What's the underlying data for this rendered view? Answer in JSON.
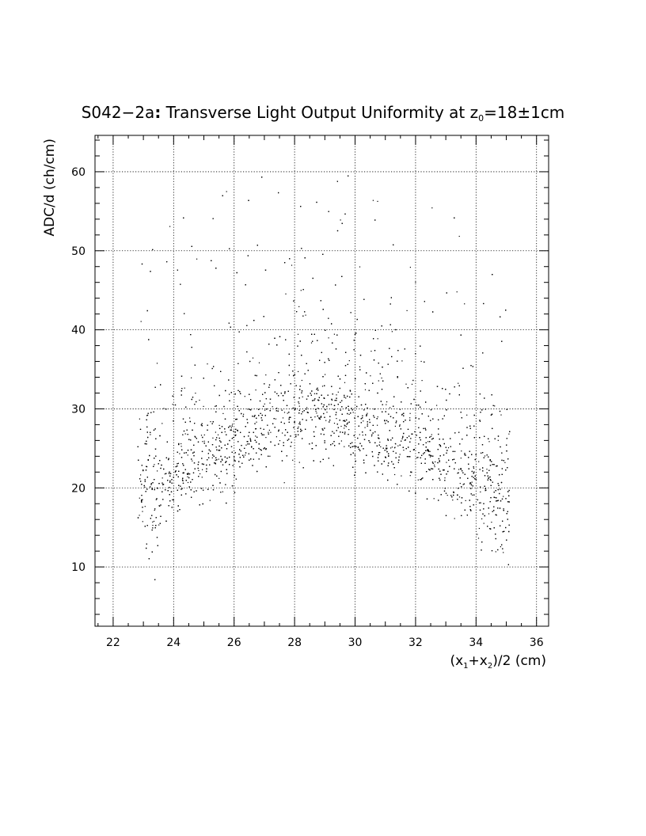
{
  "chart_data": {
    "type": "scatter",
    "title": {
      "main": "S042−2a",
      "colon": ":",
      "text": " Transverse Light Output Uniformity at z",
      "sub": "0",
      "tail": "=18±1cm"
    },
    "xlabel": {
      "p1": "(x",
      "s1": "1",
      "p2": "+x",
      "s2": "2",
      "p3": ")/2 (cm)"
    },
    "ylabel": "ADC/d (ch/cm)",
    "xlim": [
      21.4,
      36.4
    ],
    "ylim": [
      2.5,
      64.6
    ],
    "x_ticks": [
      22,
      24,
      26,
      28,
      30,
      32,
      34,
      36
    ],
    "x_tick_labels": [
      "22",
      "24",
      "26",
      "28",
      "30",
      "32",
      "34",
      "36"
    ],
    "y_ticks": [
      10,
      20,
      30,
      40,
      50,
      60
    ],
    "y_tick_labels": [
      "10",
      "20",
      "30",
      "40",
      "50",
      "60"
    ],
    "grid": true,
    "point_color": "#000000",
    "x_range_of_points": [
      22.8,
      35.1
    ],
    "band_center": [
      [
        23.0,
        20.0
      ],
      [
        24.0,
        21.5
      ],
      [
        25.0,
        23.5
      ],
      [
        26.0,
        25.5
      ],
      [
        27.0,
        27.5
      ],
      [
        28.0,
        28.5
      ],
      [
        29.0,
        28.5
      ],
      [
        30.0,
        27.5
      ],
      [
        31.0,
        26.5
      ],
      [
        32.0,
        24.5
      ],
      [
        33.0,
        22.0
      ],
      [
        34.0,
        20.5
      ],
      [
        35.0,
        19.5
      ]
    ],
    "n_points_approx": 4500
  }
}
